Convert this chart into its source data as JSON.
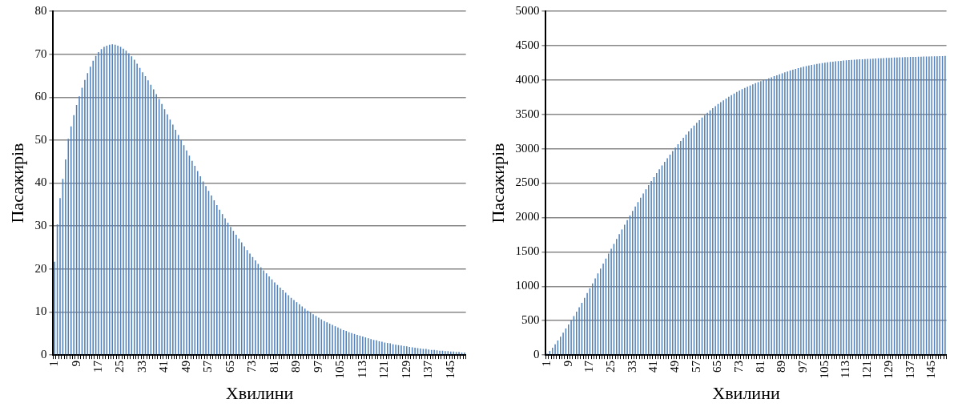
{
  "chart_data": [
    {
      "type": "bar",
      "xlabel": "Хвилини",
      "ylabel": "Пасажирів",
      "color": "#4f81bd",
      "grid": "y",
      "ylim": [
        0,
        80
      ],
      "yticks": [
        0,
        10,
        20,
        30,
        40,
        50,
        60,
        70,
        80
      ],
      "categories": [
        "1",
        null,
        null,
        null,
        null,
        null,
        null,
        null,
        "9",
        null,
        null,
        null,
        null,
        null,
        null,
        null,
        "17",
        null,
        null,
        null,
        null,
        null,
        null,
        null,
        "25",
        null,
        null,
        null,
        null,
        null,
        null,
        null,
        "33",
        null,
        null,
        null,
        null,
        null,
        null,
        null,
        "41",
        null,
        null,
        null,
        null,
        null,
        null,
        null,
        "49",
        null,
        null,
        null,
        null,
        null,
        null,
        null,
        "57",
        null,
        null,
        null,
        null,
        null,
        null,
        null,
        "65",
        null,
        null,
        null,
        null,
        null,
        null,
        null,
        "73",
        null,
        null,
        null,
        null,
        null,
        null,
        null,
        "81",
        null,
        null,
        null,
        null,
        null,
        null,
        null,
        "89",
        null,
        null,
        null,
        null,
        null,
        null,
        null,
        "97",
        null,
        null,
        null,
        null,
        null,
        null,
        null,
        "105",
        null,
        null,
        null,
        null,
        null,
        null,
        null,
        "113",
        null,
        null,
        null,
        null,
        null,
        null,
        null,
        "121",
        null,
        null,
        null,
        null,
        null,
        null,
        null,
        "129",
        null,
        null,
        null,
        null,
        null,
        null,
        null,
        "137",
        null,
        null,
        null,
        null,
        null,
        null,
        null,
        "145",
        null,
        null,
        null,
        null,
        null
      ],
      "values": [
        21.7,
        30.4,
        36.5,
        41,
        45.5,
        50.3,
        53.2,
        55.8,
        58.2,
        60.2,
        62.2,
        64,
        65.6,
        67.1,
        68.5,
        69.6,
        70.5,
        71.2,
        71.7,
        72,
        72.2,
        72.3,
        72.2,
        72,
        71.7,
        71.3,
        70.8,
        70.2,
        69.5,
        68.7,
        67.8,
        66.8,
        65.8,
        64.9,
        63.9,
        62.9,
        61.8,
        60.7,
        59.6,
        58.4,
        57.2,
        56,
        54.8,
        53.6,
        52.4,
        51.2,
        50,
        48.8,
        47.6,
        46.4,
        45.2,
        44,
        42.8,
        41.6,
        40.4,
        39.3,
        38.2,
        37.1,
        36,
        34.9,
        33.8,
        32.8,
        31.8,
        30.8,
        29.8,
        28.9,
        28,
        27.1,
        26.2,
        25.3,
        24.4,
        23.6,
        22.8,
        22,
        21.2,
        20.4,
        19.7,
        19,
        18.3,
        17.6,
        16.9,
        16.3,
        15.7,
        15.1,
        14.5,
        13.9,
        13.3,
        12.8,
        12.3,
        11.8,
        11.3,
        10.8,
        10.3,
        9.9,
        9.5,
        9.1,
        8.7,
        8.3,
        7.9,
        7.6,
        7.3,
        7,
        6.7,
        6.4,
        6.1,
        5.8,
        5.6,
        5.3,
        5.1,
        4.9,
        4.7,
        4.5,
        4.3,
        4.1,
        3.9,
        3.7,
        3.5,
        3.4,
        3.2,
        3.1,
        2.9,
        2.8,
        2.7,
        2.5,
        2.4,
        2.3,
        2.2,
        2.1,
        2,
        1.9,
        1.8,
        1.7,
        1.6,
        1.5,
        1.4,
        1.4,
        1.3,
        1.2,
        1.2,
        1.1,
        1,
        1,
        0.9,
        0.9,
        0.8,
        0.8,
        0.7,
        0.7,
        0.6,
        0.6
      ]
    },
    {
      "type": "bar",
      "xlabel": "Хвилини",
      "ylabel": "Пасажирів",
      "color": "#4f81bd",
      "grid": "y",
      "ylim": [
        0,
        5000
      ],
      "yticks": [
        0,
        500,
        1000,
        1500,
        2000,
        2500,
        3000,
        3500,
        4000,
        4500,
        5000
      ],
      "categories": [
        "1",
        null,
        null,
        null,
        null,
        null,
        null,
        null,
        "9",
        null,
        null,
        null,
        null,
        null,
        null,
        null,
        "17",
        null,
        null,
        null,
        null,
        null,
        null,
        null,
        "25",
        null,
        null,
        null,
        null,
        null,
        null,
        null,
        "33",
        null,
        null,
        null,
        null,
        null,
        null,
        null,
        "41",
        null,
        null,
        null,
        null,
        null,
        null,
        null,
        "49",
        null,
        null,
        null,
        null,
        null,
        null,
        null,
        "57",
        null,
        null,
        null,
        null,
        null,
        null,
        null,
        "65",
        null,
        null,
        null,
        null,
        null,
        null,
        null,
        "73",
        null,
        null,
        null,
        null,
        null,
        null,
        null,
        "81",
        null,
        null,
        null,
        null,
        null,
        null,
        null,
        "89",
        null,
        null,
        null,
        null,
        null,
        null,
        null,
        "97",
        null,
        null,
        null,
        null,
        null,
        null,
        null,
        "105",
        null,
        null,
        null,
        null,
        null,
        null,
        null,
        "113",
        null,
        null,
        null,
        null,
        null,
        null,
        null,
        "121",
        null,
        null,
        null,
        null,
        null,
        null,
        null,
        "129",
        null,
        null,
        null,
        null,
        null,
        null,
        null,
        "137",
        null,
        null,
        null,
        null,
        null,
        null,
        null,
        "145",
        null,
        null,
        null,
        null,
        null
      ],
      "values": [
        20,
        60,
        105,
        155,
        210,
        265,
        325,
        385,
        445,
        505,
        565,
        630,
        695,
        760,
        830,
        900,
        970,
        1042,
        1114,
        1186,
        1258,
        1330,
        1402,
        1474,
        1545,
        1616,
        1687,
        1757,
        1826,
        1895,
        1963,
        2030,
        2096,
        2161,
        2225,
        2288,
        2350,
        2411,
        2471,
        2530,
        2588,
        2645,
        2701,
        2756,
        2810,
        2863,
        2915,
        2966,
        3016,
        3065,
        3113,
        3160,
        3206,
        3251,
        3295,
        3338,
        3378,
        3416,
        3453,
        3489,
        3524,
        3557,
        3589,
        3620,
        3650,
        3678,
        3705,
        3731,
        3756,
        3780,
        3803,
        3825,
        3846,
        3866,
        3885,
        3903,
        3920,
        3937,
        3953,
        3968,
        3983,
        3997,
        4010,
        4025,
        4040,
        4055,
        4069,
        4083,
        4097,
        4111,
        4124,
        4137,
        4149,
        4161,
        4172,
        4182,
        4192,
        4201,
        4210,
        4218,
        4226,
        4233,
        4240,
        4246,
        4252,
        4257,
        4262,
        4267,
        4271,
        4275,
        4279,
        4283,
        4286,
        4289,
        4292,
        4295,
        4298,
        4300,
        4302,
        4304,
        4306,
        4308,
        4310,
        4312,
        4314,
        4316,
        4318,
        4320,
        4322,
        4324,
        4326,
        4327,
        4329,
        4330,
        4332,
        4333,
        4335,
        4336,
        4337,
        4339,
        4340,
        4341,
        4342,
        4343,
        4344,
        4345,
        4346,
        4347,
        4348,
        4349
      ]
    }
  ]
}
